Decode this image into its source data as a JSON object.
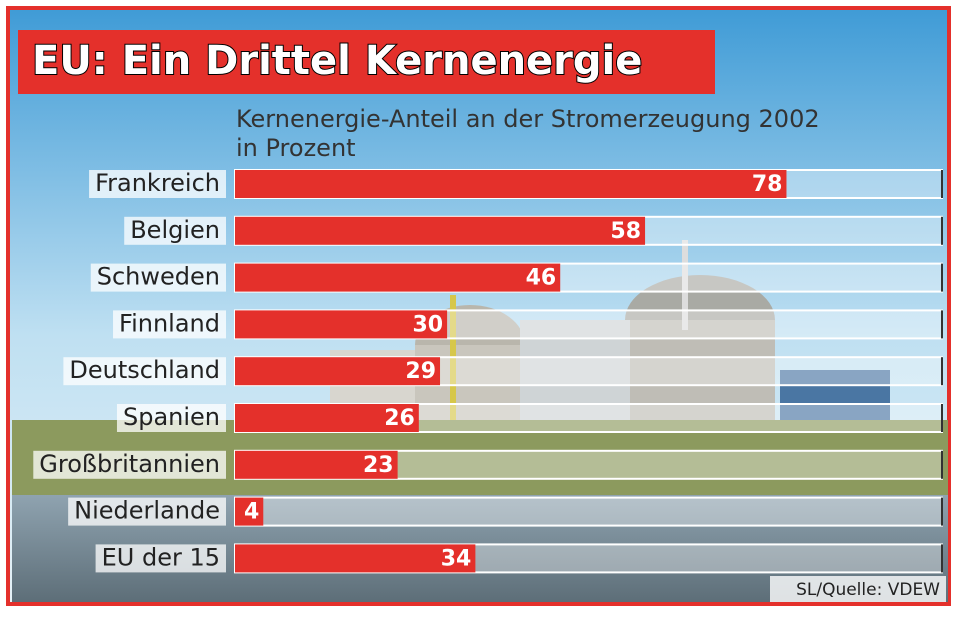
{
  "chart_data": {
    "type": "bar",
    "orientation": "horizontal",
    "title": "EU: Ein Drittel Kernenergie",
    "subtitle": [
      "Kernenergie-Anteil an der Stromerzeugung 2002",
      "in Prozent"
    ],
    "source": "SL/Quelle: VDEW",
    "categories": [
      "Frankreich",
      "Belgien",
      "Schweden",
      "Finnland",
      "Deutschland",
      "Spanien",
      "Großbritannien",
      "Niederlande",
      "EU der 15"
    ],
    "values": [
      78,
      58,
      46,
      30,
      29,
      26,
      23,
      4,
      34
    ],
    "color": "#e4302b",
    "xlim": [
      0,
      100
    ]
  }
}
